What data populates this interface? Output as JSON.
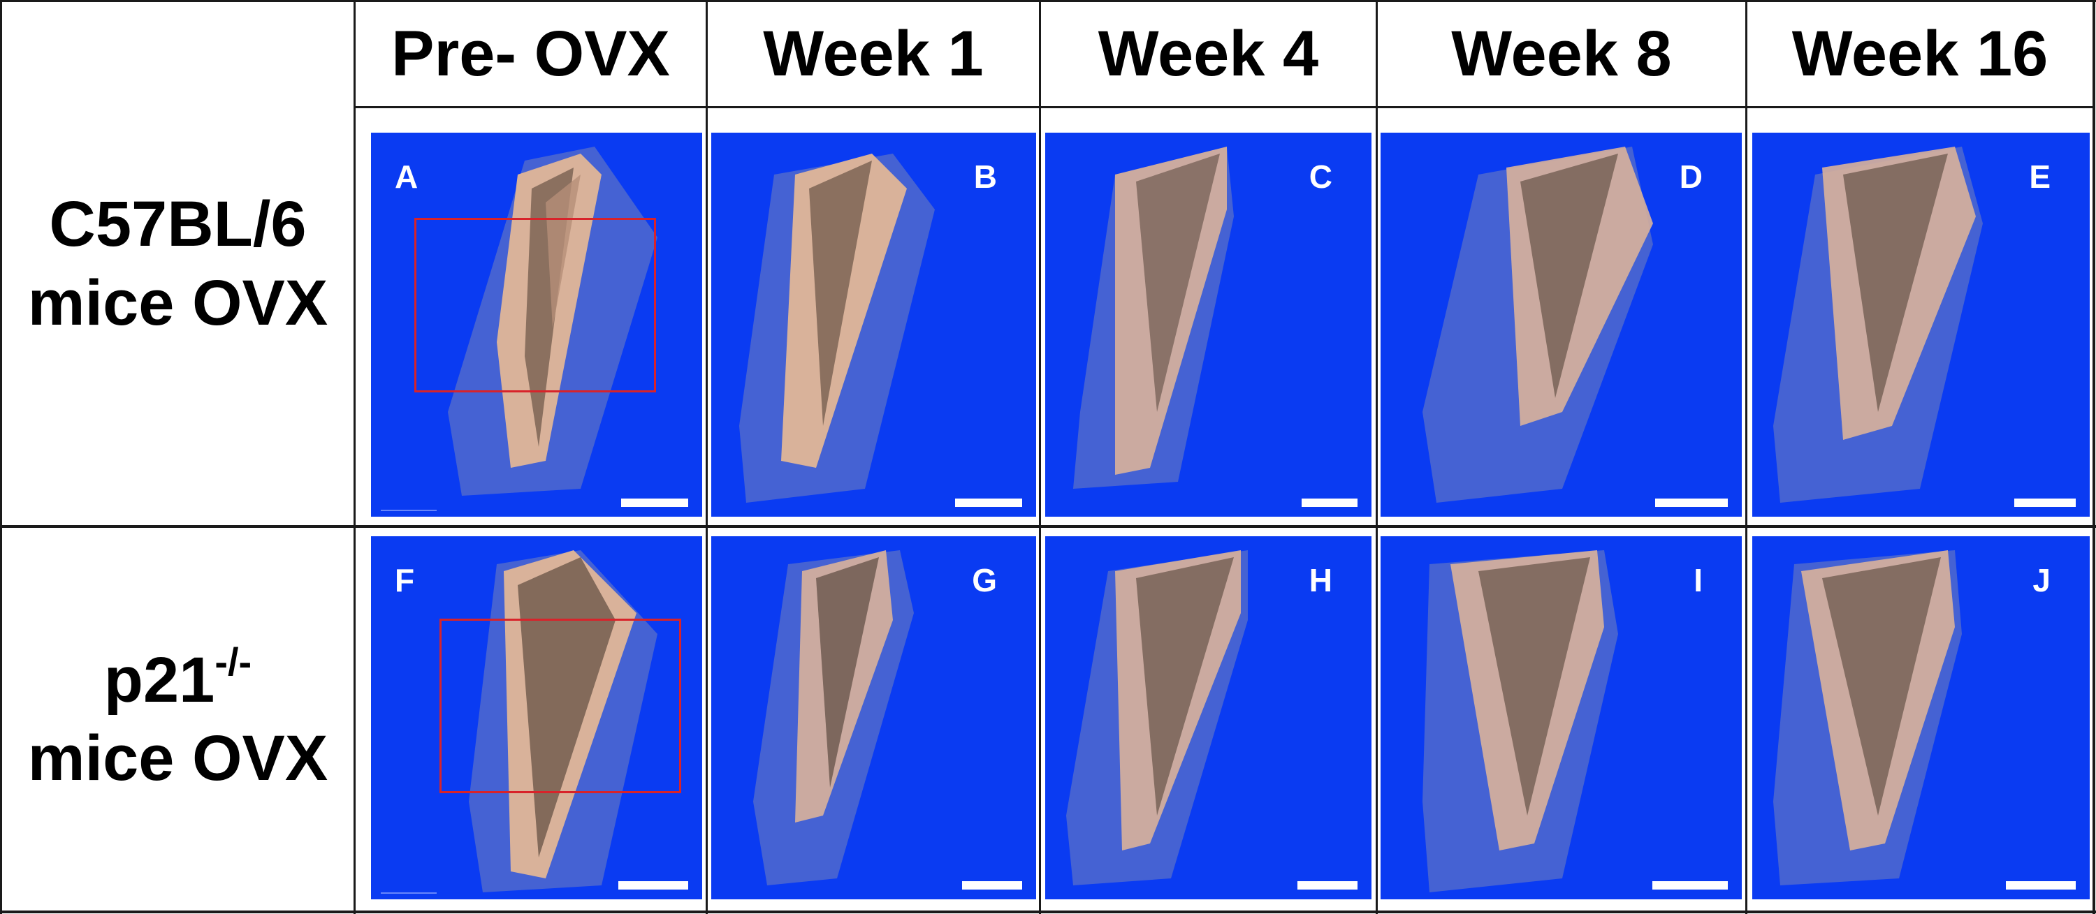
{
  "columns": [
    {
      "key": "pre",
      "label": "Pre- OVX"
    },
    {
      "key": "w1",
      "label": "Week 1"
    },
    {
      "key": "w4",
      "label": "Week 4"
    },
    {
      "key": "w8",
      "label": "Week 8"
    },
    {
      "key": "w16",
      "label": "Week 16"
    }
  ],
  "rows": [
    {
      "key": "c57",
      "line1_main": "C57BL/6",
      "line1_sup": "",
      "line2": "mice OVX"
    },
    {
      "key": "p21",
      "line1_main": "p21",
      "line1_sup": "-/-",
      "line2": "mice OVX"
    }
  ],
  "panels": [
    {
      "letter": "A"
    },
    {
      "letter": "B"
    },
    {
      "letter": "C"
    },
    {
      "letter": "D"
    },
    {
      "letter": "E"
    },
    {
      "letter": "F"
    },
    {
      "letter": "G"
    },
    {
      "letter": "H"
    },
    {
      "letter": "I"
    },
    {
      "letter": "J"
    }
  ],
  "colors": {
    "panel_background": "#0a3bf2",
    "bone_shell": "#5a70c8",
    "trabecular_bone": "#d9b29a",
    "bone_shadow": "#4a3a30",
    "roi_box": "#d8232a",
    "scale_bar": "#ffffff"
  }
}
